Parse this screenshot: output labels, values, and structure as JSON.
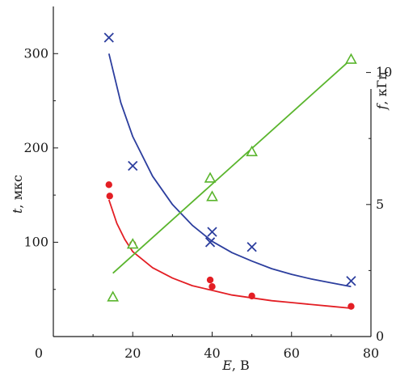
{
  "chart_data": {
    "type": "scatter",
    "xlabel": {
      "symbol": "E",
      "unit": ", В"
    },
    "ylabel_left": {
      "symbol": "t",
      "unit": ", мкс"
    },
    "ylabel_right": {
      "symbol": "f",
      "unit": ", кГц"
    },
    "xlim": [
      0,
      80
    ],
    "ylim_left": [
      0,
      350
    ],
    "ylim_right": [
      0,
      12.5
    ],
    "x_ticks": [
      0,
      20,
      40,
      60,
      80
    ],
    "y_left_ticks": [
      100,
      200,
      300
    ],
    "y_right_ticks": [
      0,
      5,
      10
    ],
    "grid": false,
    "series": [
      {
        "axis": "left",
        "marker": "x",
        "color": "#2c3e9e",
        "points": [
          [
            14,
            317
          ],
          [
            20,
            181
          ],
          [
            39.5,
            100
          ],
          [
            40,
            111
          ],
          [
            50,
            95
          ],
          [
            75,
            59
          ]
        ],
        "fit": [
          [
            14,
            300
          ],
          [
            17,
            248
          ],
          [
            20,
            212
          ],
          [
            25,
            170
          ],
          [
            30,
            140
          ],
          [
            35,
            118
          ],
          [
            40,
            101
          ],
          [
            45,
            89
          ],
          [
            50,
            80
          ],
          [
            55,
            72
          ],
          [
            60,
            66
          ],
          [
            65,
            61
          ],
          [
            70,
            57
          ],
          [
            75,
            53
          ]
        ]
      },
      {
        "axis": "left",
        "marker": "circle",
        "color": "#e31e24",
        "points": [
          [
            14,
            161
          ],
          [
            14.2,
            149
          ],
          [
            20,
            98
          ],
          [
            39.5,
            60
          ],
          [
            40,
            53
          ],
          [
            50,
            43
          ],
          [
            75,
            32
          ]
        ],
        "fit": [
          [
            14,
            145
          ],
          [
            16,
            120
          ],
          [
            18,
            103
          ],
          [
            20,
            90
          ],
          [
            25,
            73
          ],
          [
            30,
            62
          ],
          [
            35,
            54
          ],
          [
            40,
            49
          ],
          [
            45,
            44
          ],
          [
            50,
            41
          ],
          [
            55,
            38
          ],
          [
            60,
            36
          ],
          [
            65,
            34
          ],
          [
            70,
            32
          ],
          [
            75,
            30
          ]
        ]
      },
      {
        "axis": "right",
        "marker": "triangle",
        "color": "#5ab52d",
        "points": [
          [
            15,
            1.5
          ],
          [
            20,
            3.5
          ],
          [
            39.5,
            6
          ],
          [
            40,
            5.3
          ],
          [
            50,
            7
          ],
          [
            75,
            10.5
          ]
        ],
        "fit": [
          [
            15,
            2.4
          ],
          [
            75,
            10.5
          ]
        ]
      }
    ]
  }
}
